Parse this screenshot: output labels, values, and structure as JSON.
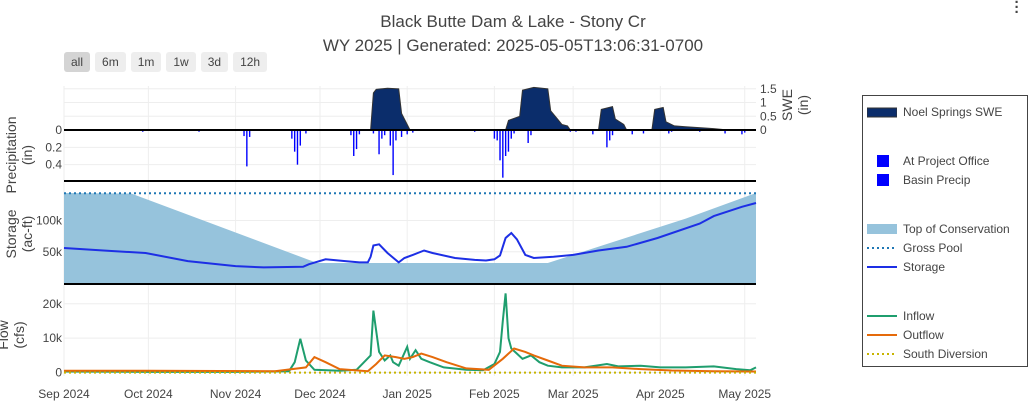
{
  "title_line1": "Black Butte Dam & Lake - Stony Cr",
  "title_line2": "WY 2025 | Generated: 2025-05-05T13:06:31-0700",
  "range_buttons": [
    {
      "label": "all",
      "active": true
    },
    {
      "label": "6m",
      "active": false
    },
    {
      "label": "1m",
      "active": false
    },
    {
      "label": "1w",
      "active": false
    },
    {
      "label": "3d",
      "active": false
    },
    {
      "label": "12h",
      "active": false
    }
  ],
  "modebar_icon": "vertical-ellipsis-icon",
  "legend": [
    {
      "label": "Noel Springs SWE",
      "color": "#0b2d6b",
      "symbol": "area"
    },
    {
      "label": "At Project Office",
      "color": "#0000ff",
      "symbol": "square"
    },
    {
      "label": "Basin Precip",
      "color": "#0000ff",
      "symbol": "square"
    },
    {
      "label": "Top of Conservation",
      "color": "#96c3dc",
      "symbol": "area"
    },
    {
      "label": "Gross Pool",
      "color": "#1f77b4",
      "symbol": "dotted"
    },
    {
      "label": "Storage",
      "color": "#1d2fe5",
      "symbol": "line"
    },
    {
      "label": "Inflow",
      "color": "#1f9e6e",
      "symbol": "line"
    },
    {
      "label": "Outflow",
      "color": "#e56a0a",
      "symbol": "line"
    },
    {
      "label": "South Diversion",
      "color": "#c8b400",
      "symbol": "dashed"
    }
  ],
  "chart_data": [
    {
      "type": "area",
      "name_panel": "snow",
      "ylabel": "SWE (in)",
      "ylim": [
        0,
        1.6
      ],
      "yticks": [
        0,
        0.5,
        1,
        1.5
      ],
      "series": [
        {
          "name": "Noel Springs SWE",
          "points": [
            [
              "2024-12-19",
              0
            ],
            [
              "2024-12-20",
              1.35
            ],
            [
              "2024-12-21",
              1.48
            ],
            [
              "2024-12-25",
              1.52
            ],
            [
              "2024-12-29",
              1.5
            ],
            [
              "2024-12-30",
              0.6
            ],
            [
              "2024-12-31",
              0.4
            ],
            [
              "2025-01-01",
              0.2
            ],
            [
              "2025-01-02",
              0
            ],
            [
              "2025-02-05",
              0
            ],
            [
              "2025-02-06",
              0.35
            ],
            [
              "2025-02-10",
              0.5
            ],
            [
              "2025-02-11",
              1.45
            ],
            [
              "2025-02-15",
              1.55
            ],
            [
              "2025-02-20",
              1.5
            ],
            [
              "2025-02-21",
              0.7
            ],
            [
              "2025-02-23",
              0.45
            ],
            [
              "2025-02-25",
              0.2
            ],
            [
              "2025-02-27",
              0.15
            ],
            [
              "2025-02-28",
              0
            ],
            [
              "2025-03-10",
              0
            ],
            [
              "2025-03-11",
              0.75
            ],
            [
              "2025-03-15",
              0.85
            ],
            [
              "2025-03-16",
              0.4
            ],
            [
              "2025-03-19",
              0.2
            ],
            [
              "2025-03-20",
              0
            ],
            [
              "2025-03-29",
              0
            ],
            [
              "2025-03-30",
              0.75
            ],
            [
              "2025-04-02",
              0.82
            ],
            [
              "2025-04-03",
              0.3
            ],
            [
              "2025-04-06",
              0.15
            ],
            [
              "2025-04-10",
              0.12
            ],
            [
              "2025-04-20",
              0.05
            ],
            [
              "2025-04-25",
              0
            ]
          ]
        }
      ]
    },
    {
      "type": "bar",
      "name_panel": "precip",
      "ylabel": "Precipitation (in)",
      "ylim": [
        0,
        0.6
      ],
      "yticks": [
        0,
        0.2,
        0.4
      ],
      "reversed": true,
      "series": [
        {
          "name": "Basin Precip",
          "points": [
            [
              "2024-09-29",
              0.02
            ],
            [
              "2024-10-19",
              0.02
            ],
            [
              "2024-11-04",
              0.07
            ],
            [
              "2024-11-05",
              0.42
            ],
            [
              "2024-11-06",
              0.08
            ],
            [
              "2024-11-21",
              0.1
            ],
            [
              "2024-11-22",
              0.25
            ],
            [
              "2024-11-23",
              0.4
            ],
            [
              "2024-11-24",
              0.18
            ],
            [
              "2024-11-26",
              0.04
            ],
            [
              "2024-12-12",
              0.06
            ],
            [
              "2024-12-13",
              0.3
            ],
            [
              "2024-12-14",
              0.22
            ],
            [
              "2024-12-15",
              0.05
            ],
            [
              "2024-12-20",
              0.04
            ],
            [
              "2024-12-22",
              0.28
            ],
            [
              "2024-12-23",
              0.1
            ],
            [
              "2024-12-24",
              0.06
            ],
            [
              "2024-12-26",
              0.18
            ],
            [
              "2024-12-27",
              0.52
            ],
            [
              "2024-12-28",
              0.12
            ],
            [
              "2024-12-30",
              0.08
            ],
            [
              "2025-01-01",
              0.05
            ],
            [
              "2025-01-03",
              0.03
            ],
            [
              "2025-01-25",
              0.02
            ],
            [
              "2025-02-01",
              0.1
            ],
            [
              "2025-02-02",
              0.12
            ],
            [
              "2025-02-03",
              0.35
            ],
            [
              "2025-02-04",
              0.55
            ],
            [
              "2025-02-05",
              0.3
            ],
            [
              "2025-02-06",
              0.25
            ],
            [
              "2025-02-07",
              0.1
            ],
            [
              "2025-02-08",
              0.04
            ],
            [
              "2025-02-13",
              0.15
            ],
            [
              "2025-02-14",
              0.06
            ],
            [
              "2025-02-28",
              0.02
            ],
            [
              "2025-03-02",
              0.02
            ],
            [
              "2025-03-08",
              0.05
            ],
            [
              "2025-03-13",
              0.2
            ],
            [
              "2025-03-14",
              0.12
            ],
            [
              "2025-03-15",
              0.06
            ],
            [
              "2025-03-22",
              0.05
            ],
            [
              "2025-03-26",
              0.04
            ],
            [
              "2025-04-04",
              0.04
            ],
            [
              "2025-04-05",
              0.02
            ],
            [
              "2025-04-15",
              0.02
            ],
            [
              "2025-04-24",
              0.04
            ],
            [
              "2025-04-30",
              0.05
            ],
            [
              "2025-05-01",
              0.03
            ]
          ]
        }
      ]
    },
    {
      "type": "line",
      "name_panel": "storage",
      "ylabel": "Storage (ac-ft)",
      "ylim": [
        0,
        160000
      ],
      "yticks": [
        50000,
        100000
      ],
      "ytick_labels": [
        "50k",
        "100k"
      ],
      "series": [
        {
          "name": "Top of Conservation",
          "points": [
            [
              "2024-09-01",
              144000
            ],
            [
              "2024-09-25",
              143000
            ],
            [
              "2024-11-30",
              32000
            ],
            [
              "2025-02-20",
              32000
            ],
            [
              "2025-04-10",
              103000
            ],
            [
              "2025-05-05",
              144000
            ]
          ]
        },
        {
          "name": "Gross Pool",
          "points": [
            [
              "2024-09-01",
              143700
            ],
            [
              "2025-05-05",
              143700
            ]
          ]
        },
        {
          "name": "Storage",
          "points": [
            [
              "2024-09-01",
              56000
            ],
            [
              "2024-09-15",
              52000
            ],
            [
              "2024-09-30",
              48000
            ],
            [
              "2024-10-15",
              35000
            ],
            [
              "2024-11-01",
              27000
            ],
            [
              "2024-11-11",
              25000
            ],
            [
              "2024-11-25",
              26000
            ],
            [
              "2024-11-27",
              30000
            ],
            [
              "2024-12-03",
              38000
            ],
            [
              "2024-12-10",
              35000
            ],
            [
              "2024-12-15",
              33000
            ],
            [
              "2024-12-18",
              33000
            ],
            [
              "2024-12-19",
              42000
            ],
            [
              "2024-12-20",
              60000
            ],
            [
              "2024-12-22",
              62000
            ],
            [
              "2024-12-25",
              48000
            ],
            [
              "2024-12-29",
              33000
            ],
            [
              "2024-12-31",
              40000
            ],
            [
              "2025-01-03",
              45000
            ],
            [
              "2025-01-07",
              52000
            ],
            [
              "2025-01-10",
              48000
            ],
            [
              "2025-01-18",
              40000
            ],
            [
              "2025-01-25",
              37000
            ],
            [
              "2025-01-29",
              36000
            ],
            [
              "2025-02-01",
              38000
            ],
            [
              "2025-02-03",
              44000
            ],
            [
              "2025-02-05",
              72000
            ],
            [
              "2025-02-07",
              80000
            ],
            [
              "2025-02-09",
              70000
            ],
            [
              "2025-02-12",
              45000
            ],
            [
              "2025-02-15",
              40000
            ],
            [
              "2025-02-22",
              42000
            ],
            [
              "2025-03-01",
              45000
            ],
            [
              "2025-03-10",
              52000
            ],
            [
              "2025-03-20",
              58000
            ],
            [
              "2025-03-31",
              72000
            ],
            [
              "2025-04-15",
              95000
            ],
            [
              "2025-04-20",
              107000
            ],
            [
              "2025-04-30",
              122000
            ],
            [
              "2025-05-05",
              128000
            ]
          ]
        }
      ]
    },
    {
      "type": "line",
      "name_panel": "flow",
      "ylabel": "Flow (cfs)",
      "ylim": [
        -1000,
        24000
      ],
      "yticks": [
        0,
        10000,
        20000
      ],
      "ytick_labels": [
        "0",
        "10k",
        "20k"
      ],
      "x_ticks": [
        "Sep 2024",
        "Oct 2024",
        "Nov 2024",
        "Dec 2024",
        "Jan 2025",
        "Feb 2025",
        "Mar 2025",
        "Apr 2025",
        "May 2025"
      ],
      "series": [
        {
          "name": "Inflow",
          "points": [
            [
              "2024-09-01",
              300
            ],
            [
              "2024-10-01",
              200
            ],
            [
              "2024-11-01",
              200
            ],
            [
              "2024-11-20",
              400
            ],
            [
              "2024-11-22",
              3000
            ],
            [
              "2024-11-24",
              9800
            ],
            [
              "2024-11-26",
              3500
            ],
            [
              "2024-11-29",
              800
            ],
            [
              "2024-12-08",
              500
            ],
            [
              "2024-12-14",
              800
            ],
            [
              "2024-12-19",
              5000
            ],
            [
              "2024-12-20",
              18000
            ],
            [
              "2024-12-22",
              6000
            ],
            [
              "2024-12-24",
              3500
            ],
            [
              "2024-12-26",
              5000
            ],
            [
              "2024-12-27",
              3000
            ],
            [
              "2024-12-29",
              2000
            ],
            [
              "2025-01-01",
              7500
            ],
            [
              "2025-01-02",
              4000
            ],
            [
              "2025-01-04",
              6500
            ],
            [
              "2025-01-06",
              4000
            ],
            [
              "2025-01-09",
              3000
            ],
            [
              "2025-01-14",
              1500
            ],
            [
              "2025-01-22",
              800
            ],
            [
              "2025-01-28",
              700
            ],
            [
              "2025-02-01",
              2500
            ],
            [
              "2025-02-03",
              6000
            ],
            [
              "2025-02-04",
              15000
            ],
            [
              "2025-02-05",
              23000
            ],
            [
              "2025-02-06",
              10000
            ],
            [
              "2025-02-07",
              7000
            ],
            [
              "2025-02-09",
              5500
            ],
            [
              "2025-02-11",
              4000
            ],
            [
              "2025-02-14",
              5000
            ],
            [
              "2025-02-17",
              3000
            ],
            [
              "2025-02-20",
              2000
            ],
            [
              "2025-02-25",
              1500
            ],
            [
              "2025-03-05",
              1500
            ],
            [
              "2025-03-13",
              2500
            ],
            [
              "2025-03-17",
              1800
            ],
            [
              "2025-03-25",
              2000
            ],
            [
              "2025-04-01",
              1500
            ],
            [
              "2025-04-10",
              1500
            ],
            [
              "2025-04-20",
              1800
            ],
            [
              "2025-04-28",
              1000
            ],
            [
              "2025-05-03",
              700
            ],
            [
              "2025-05-05",
              1500
            ]
          ]
        },
        {
          "name": "Outflow",
          "points": [
            [
              "2024-09-01",
              500
            ],
            [
              "2024-10-01",
              500
            ],
            [
              "2024-11-15",
              400
            ],
            [
              "2024-11-26",
              1500
            ],
            [
              "2024-11-29",
              4500
            ],
            [
              "2024-12-03",
              3000
            ],
            [
              "2024-12-08",
              1000
            ],
            [
              "2024-12-18",
              400
            ],
            [
              "2024-12-21",
              2500
            ],
            [
              "2024-12-24",
              5000
            ],
            [
              "2024-12-28",
              4500
            ],
            [
              "2024-12-31",
              4000
            ],
            [
              "2025-01-03",
              4500
            ],
            [
              "2025-01-06",
              5500
            ],
            [
              "2025-01-10",
              4500
            ],
            [
              "2025-01-15",
              3000
            ],
            [
              "2025-01-22",
              1200
            ],
            [
              "2025-01-30",
              800
            ],
            [
              "2025-02-04",
              4000
            ],
            [
              "2025-02-08",
              7000
            ],
            [
              "2025-02-12",
              6000
            ],
            [
              "2025-02-15",
              5000
            ],
            [
              "2025-02-20",
              3500
            ],
            [
              "2025-02-25",
              2000
            ],
            [
              "2025-03-05",
              1500
            ],
            [
              "2025-03-15",
              1500
            ],
            [
              "2025-03-25",
              1000
            ],
            [
              "2025-04-05",
              600
            ],
            [
              "2025-04-20",
              400
            ],
            [
              "2025-05-05",
              300
            ]
          ]
        },
        {
          "name": "South Diversion",
          "points": [
            [
              "2024-09-01",
              0
            ],
            [
              "2025-05-05",
              0
            ]
          ]
        }
      ]
    }
  ]
}
